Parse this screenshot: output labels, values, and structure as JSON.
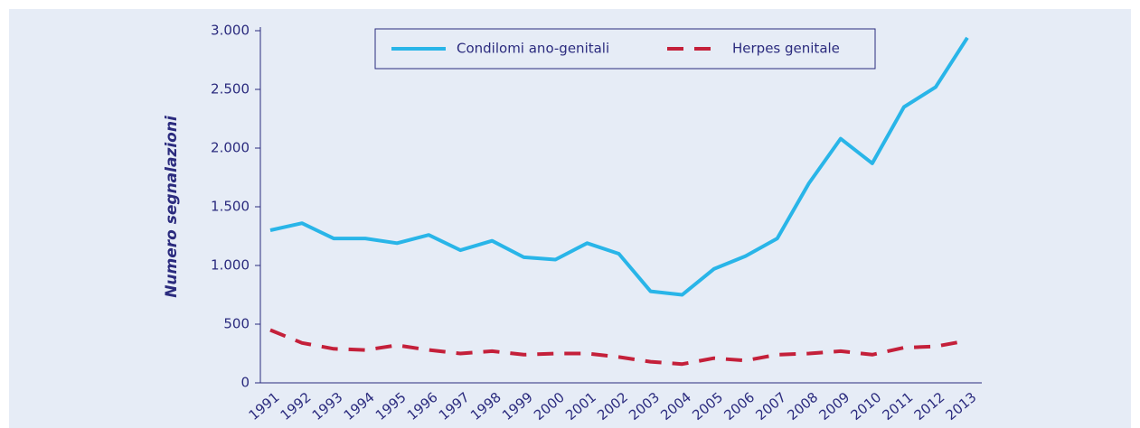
{
  "chart_data": {
    "type": "line",
    "y_label": "Numero segnalazioni",
    "categories": [
      "1991",
      "1992",
      "1993",
      "1994",
      "1995",
      "1996",
      "1997",
      "1998",
      "1999",
      "2000",
      "2001",
      "2002",
      "2003",
      "2004",
      "2005",
      "2006",
      "2007",
      "2008",
      "2009",
      "2010",
      "2011",
      "2012",
      "2013"
    ],
    "series": [
      {
        "name": "Condilomi ano-genitali",
        "color": "#29b5e8",
        "dash": "solid",
        "values": [
          1300,
          1360,
          1230,
          1230,
          1190,
          1260,
          1130,
          1210,
          1070,
          1050,
          1190,
          1100,
          780,
          750,
          970,
          1080,
          1230,
          1700,
          2080,
          1870,
          2350,
          2520,
          2940
        ]
      },
      {
        "name": "Herpes genitale",
        "color": "#c4203a",
        "dash": "dashed",
        "values": [
          450,
          340,
          290,
          280,
          320,
          280,
          250,
          270,
          240,
          250,
          250,
          220,
          180,
          160,
          210,
          190,
          240,
          250,
          270,
          240,
          300,
          310,
          360
        ]
      }
    ],
    "ylim": [
      0,
      3000
    ],
    "yticks": [
      0,
      500,
      {
        "value": 1000,
        "label": "1.000"
      },
      {
        "value": 1500,
        "label": "1.500"
      },
      {
        "value": 2000,
        "label": "2.000"
      },
      {
        "value": 2500,
        "label": "2.500"
      },
      {
        "value": 3000,
        "label": "3.000"
      }
    ],
    "legend": "top"
  }
}
